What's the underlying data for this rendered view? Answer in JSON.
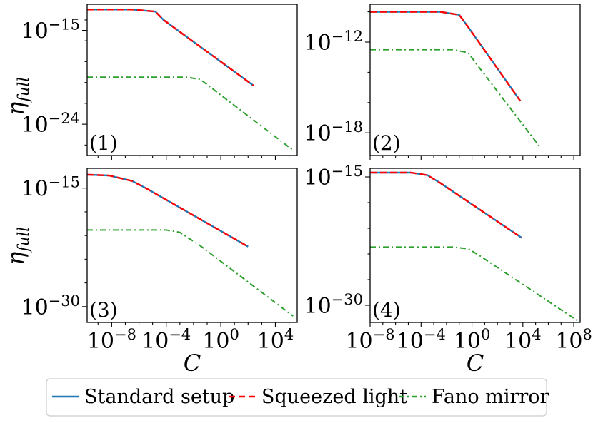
{
  "figure": {
    "y_label_main": "η",
    "y_label_sub": "full",
    "x_label": "C"
  },
  "legend": {
    "placement": "bottom-center",
    "items": [
      {
        "label": "Standard setup",
        "color": "#1f77b4",
        "style": "solid"
      },
      {
        "label": "Squeezed light",
        "color": "#ff0000",
        "style": "dashed"
      },
      {
        "label": "Fano mirror",
        "color": "#2ca02c",
        "style": "dashdot"
      }
    ]
  },
  "chart_data": [
    {
      "type": "line",
      "panel": "(1)",
      "x_scale": "log",
      "y_scale": "log",
      "xlim_log10": [
        -9.8,
        5.6
      ],
      "ylim_log10": [
        -27.0,
        -12.5
      ],
      "x_ticks_log10": [
        -8,
        -4,
        0,
        4
      ],
      "y_ticks_log10": [
        -24,
        -15
      ],
      "x_tick_labels_shown": false,
      "series": [
        {
          "name": "Standard setup",
          "x_log10": [
            -9.8,
            -6.5,
            -4.8,
            -4.2,
            2.4
          ],
          "y_log10": [
            -13.0,
            -13.0,
            -13.2,
            -14.0,
            -20.3
          ]
        },
        {
          "name": "Squeezed light",
          "x_log10": [
            -9.8,
            -6.5,
            -4.8,
            -4.2,
            2.4
          ],
          "y_log10": [
            -13.0,
            -13.0,
            -13.2,
            -14.0,
            -20.3
          ]
        },
        {
          "name": "Fano mirror",
          "x_log10": [
            -9.8,
            -2.5,
            -1.5,
            -0.8,
            5.3
          ],
          "y_log10": [
            -19.5,
            -19.5,
            -19.7,
            -20.4,
            -26.5
          ]
        }
      ]
    },
    {
      "type": "line",
      "panel": "(2)",
      "x_scale": "log",
      "y_scale": "log",
      "xlim_log10": [
        -8.0,
        8.5
      ],
      "ylim_log10": [
        -19.5,
        -9.5
      ],
      "x_ticks_log10": [
        -8,
        -4,
        0,
        4,
        8
      ],
      "y_ticks_log10": [
        -18,
        -12
      ],
      "x_tick_labels_shown": false,
      "series": [
        {
          "name": "Standard setup",
          "x_log10": [
            -8.0,
            -2.5,
            -1.0,
            -0.3,
            3.8
          ],
          "y_log10": [
            -10.0,
            -10.0,
            -10.2,
            -11.0,
            -15.9
          ]
        },
        {
          "name": "Squeezed light",
          "x_log10": [
            -8.0,
            -2.5,
            -1.0,
            -0.3,
            3.8
          ],
          "y_log10": [
            -10.0,
            -10.0,
            -10.2,
            -11.0,
            -15.9
          ]
        },
        {
          "name": "Fano mirror",
          "x_log10": [
            -8.0,
            -1.5,
            -0.3,
            0.4,
            5.4
          ],
          "y_log10": [
            -12.5,
            -12.5,
            -12.7,
            -13.5,
            -19.0
          ]
        }
      ]
    },
    {
      "type": "line",
      "panel": "(3)",
      "x_scale": "log",
      "y_scale": "log",
      "xlim_log10": [
        -9.8,
        5.6
      ],
      "ylim_log10": [
        -32.0,
        -12.5
      ],
      "x_ticks_log10": [
        -8,
        -4,
        0,
        4
      ],
      "y_ticks_log10": [
        -30,
        -15
      ],
      "x_tick_labels_shown": true,
      "x_tick_labels": [
        "10^-8",
        "10^-4",
        "10^0",
        "10^4"
      ],
      "series": [
        {
          "name": "Standard setup",
          "x_log10": [
            -9.8,
            -8.2,
            -6.5,
            -5.5,
            2.0
          ],
          "y_log10": [
            -13.3,
            -13.4,
            -14.1,
            -15.0,
            -22.4
          ]
        },
        {
          "name": "Squeezed light",
          "x_log10": [
            -9.8,
            -8.2,
            -6.5,
            -5.5,
            2.0
          ],
          "y_log10": [
            -13.3,
            -13.4,
            -14.1,
            -15.0,
            -22.4
          ]
        },
        {
          "name": "Fano mirror",
          "x_log10": [
            -9.8,
            -4.0,
            -3.0,
            -1.5,
            5.3
          ],
          "y_log10": [
            -20.3,
            -20.3,
            -20.6,
            -22.3,
            -31.2
          ]
        }
      ]
    },
    {
      "type": "line",
      "panel": "(4)",
      "x_scale": "log",
      "y_scale": "log",
      "xlim_log10": [
        -8.0,
        8.5
      ],
      "ylim_log10": [
        -32.0,
        -14.0
      ],
      "x_ticks_log10": [
        -8,
        -4,
        0,
        4,
        8
      ],
      "y_ticks_log10": [
        -30,
        -15
      ],
      "x_tick_labels_shown": true,
      "x_tick_labels": [
        "10^-8",
        "10^-4",
        "10^0",
        "10^4",
        "10^8"
      ],
      "series": [
        {
          "name": "Standard setup",
          "x_log10": [
            -8.0,
            -4.8,
            -3.5,
            -2.5,
            3.9
          ],
          "y_log10": [
            -14.5,
            -14.5,
            -14.8,
            -15.7,
            -22.1
          ]
        },
        {
          "name": "Squeezed light",
          "x_log10": [
            -8.0,
            -4.8,
            -3.5,
            -2.5,
            3.9
          ],
          "y_log10": [
            -14.5,
            -14.5,
            -14.8,
            -15.7,
            -22.1
          ]
        },
        {
          "name": "Fano mirror",
          "x_log10": [
            -8.0,
            -1.5,
            -0.3,
            0.5,
            8.5
          ],
          "y_log10": [
            -23.2,
            -23.2,
            -23.4,
            -24.1,
            -32.0
          ]
        }
      ]
    }
  ]
}
